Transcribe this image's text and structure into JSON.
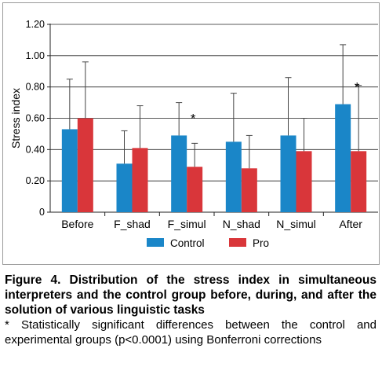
{
  "chart_data": {
    "type": "bar",
    "ylabel": "Stress index",
    "ylim": [
      0,
      1.2
    ],
    "yticks": [
      {
        "value": 0,
        "label": "0"
      },
      {
        "value": 0.2,
        "label": "0.20"
      },
      {
        "value": 0.4,
        "label": "0.40"
      },
      {
        "value": 0.6,
        "label": "0.60"
      },
      {
        "value": 0.8,
        "label": "0.80"
      },
      {
        "value": 1.0,
        "label": "1.00"
      },
      {
        "value": 1.2,
        "label": "1.20"
      }
    ],
    "grid": true,
    "legend_position": "bottom",
    "categories": [
      "Before",
      "F_shad",
      "F_simul",
      "N_shad",
      "N_simul",
      "After"
    ],
    "series": [
      {
        "name": "Control",
        "color": "#1a86c8",
        "values": [
          0.53,
          0.31,
          0.49,
          0.45,
          0.49,
          0.69
        ],
        "error_upper": [
          0.85,
          0.52,
          0.7,
          0.76,
          0.86,
          1.07
        ]
      },
      {
        "name": "Pro",
        "color": "#d9363a",
        "values": [
          0.6,
          0.41,
          0.29,
          0.28,
          0.39,
          0.39
        ],
        "error_upper": [
          0.96,
          0.68,
          0.44,
          0.49,
          0.6,
          0.81
        ]
      }
    ],
    "annotations": [
      {
        "category": "F_simul",
        "text": "*"
      },
      {
        "category": "After",
        "text": "*"
      }
    ]
  },
  "caption": {
    "title": "Figure 4. Distribution of the stress index in simultaneous interpreters and the control group before, during, and after the solution of various linguistic tasks",
    "note": "* Statistically significant differences between the control and experimental groups (p<0.0001) using Bonferroni corrections"
  }
}
